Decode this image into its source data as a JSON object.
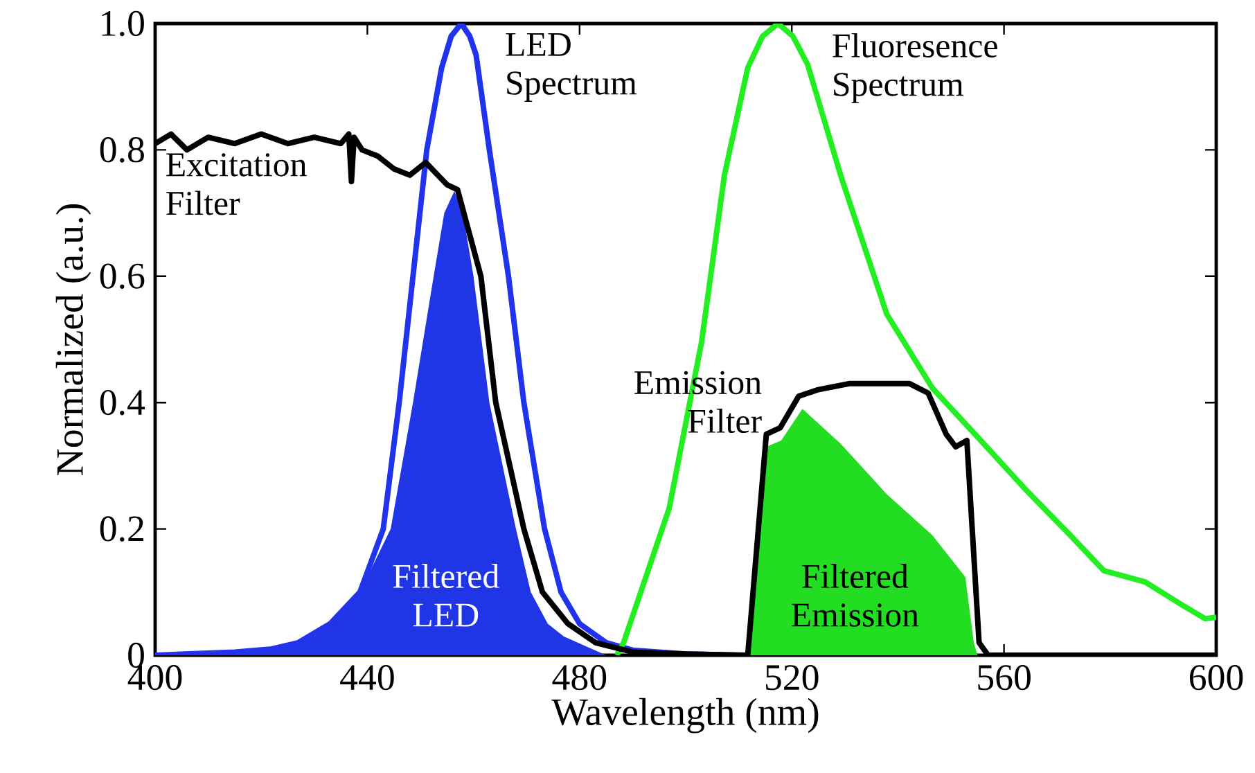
{
  "chart_data": {
    "type": "line",
    "xlabel": "Wavelength (nm)",
    "ylabel": "Normalized (a.u.)",
    "xlim": [
      400,
      600
    ],
    "ylim": [
      0,
      1
    ],
    "xticks": [
      400,
      440,
      480,
      520,
      560,
      600
    ],
    "yticks": [
      0,
      0.2,
      0.4,
      0.6,
      0.8,
      {
        "value": 1,
        "label": "1.0"
      }
    ],
    "annotations": [
      "Filtered LED",
      "Filtered Emission",
      "LED Spectrum",
      "Fluoresence Spectrum",
      "Excitation Filter",
      "Emission Filter"
    ],
    "series": [
      {
        "type": "area",
        "color": "#1f35e6",
        "x": [
          400,
          420,
          430,
          433,
          438.6,
          444.4,
          448.6,
          452.5,
          454.5,
          456.4,
          458,
          460,
          463,
          468,
          470.8,
          474,
          477,
          485
        ],
        "values": [
          0,
          0.008,
          0.03,
          0.05,
          0.1,
          0.2,
          0.4,
          0.6,
          0.7,
          0.735,
          0.7,
          0.6,
          0.4,
          0.2,
          0.1,
          0.05,
          0.03,
          0
        ]
      },
      {
        "type": "area",
        "color": "#22dd22",
        "x": [
          511.7,
          515.2,
          518,
          522,
          529.2,
          537.9,
          546.5,
          552.7,
          554.3,
          555
        ],
        "values": [
          0,
          0.33,
          0.34,
          0.39,
          0.335,
          0.255,
          0.19,
          0.124,
          0.02,
          0
        ]
      },
      {
        "color": "#2233ee",
        "x": [
          400,
          415,
          422,
          427,
          433,
          438.6,
          443,
          446,
          448.6,
          451.2,
          454,
          455.8,
          457.7,
          459.3,
          460.5,
          463,
          466.6,
          469.5,
          473.4,
          476.5,
          480,
          485,
          490,
          500,
          510
        ],
        "values": [
          0,
          0.005,
          0.01,
          0.02,
          0.05,
          0.1,
          0.2,
          0.4,
          0.6,
          0.8,
          0.93,
          0.98,
          1.0,
          0.98,
          0.95,
          0.8,
          0.6,
          0.4,
          0.2,
          0.1,
          0.05,
          0.02,
          0.008,
          0.002,
          0
        ]
      },
      {
        "color": "#22ee22",
        "x": [
          487,
          488.3,
          496.9,
          503,
          507.3,
          511.7,
          514.5,
          517.4,
          520.2,
          523,
          529.2,
          537.9,
          546.5,
          555.3,
          564,
          572.6,
          578.8,
          586.6,
          593.5,
          597.9,
          600
        ],
        "values": [
          0,
          0.02,
          0.233,
          0.496,
          0.76,
          0.93,
          0.98,
          1.0,
          0.98,
          0.935,
          0.76,
          0.54,
          0.423,
          0.343,
          0.263,
          0.189,
          0.134,
          0.116,
          0.08,
          0.058,
          0.06
        ]
      },
      {
        "color": "#000000",
        "x": [
          400,
          403,
          406,
          410,
          415,
          420,
          425,
          430,
          435,
          436.5,
          437,
          437.5,
          439,
          442,
          445,
          448,
          451,
          455,
          457,
          461.4,
          464.2,
          469.5,
          473,
          477.8,
          483,
          490,
          500,
          511.7
        ],
        "values": [
          0.81,
          0.825,
          0.8,
          0.82,
          0.81,
          0.825,
          0.81,
          0.82,
          0.81,
          0.825,
          0.75,
          0.82,
          0.8,
          0.79,
          0.77,
          0.76,
          0.78,
          0.745,
          0.737,
          0.6,
          0.4,
          0.2,
          0.1,
          0.05,
          0.02,
          0.005,
          0.002,
          0
        ]
      },
      {
        "color": "#000000",
        "x": [
          511.7,
          515.2,
          517.8,
          521.3,
          524.8,
          530.8,
          542.2,
          545.7,
          549.1,
          550.9,
          553,
          555.3,
          557,
          600
        ],
        "values": [
          0,
          0.35,
          0.36,
          0.41,
          0.42,
          0.43,
          0.43,
          0.415,
          0.35,
          0.33,
          0.34,
          0.02,
          0,
          0
        ]
      }
    ]
  }
}
